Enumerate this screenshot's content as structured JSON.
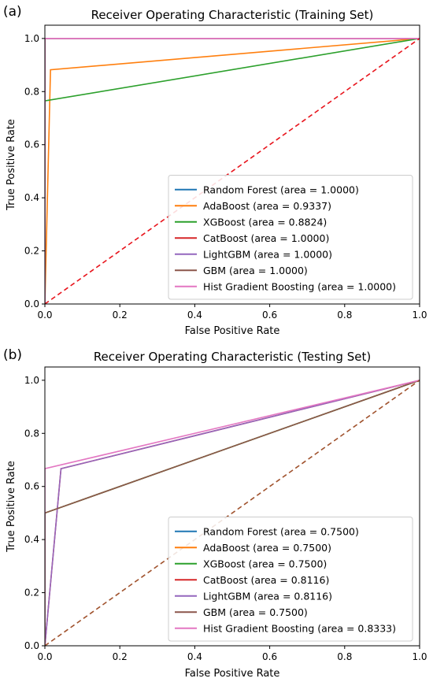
{
  "chart_data": [
    {
      "panel_label": "(a)",
      "type": "line",
      "title": "Receiver Operating Characteristic (Training Set)",
      "xlabel": "False Positive Rate",
      "ylabel": "True Positive Rate",
      "xlim": [
        0,
        1
      ],
      "ylim": [
        0,
        1.05
      ],
      "xticks": [
        "0.0",
        "0.2",
        "0.4",
        "0.6",
        "0.8",
        "1.0"
      ],
      "yticks": [
        "0.0",
        "0.2",
        "0.4",
        "0.6",
        "0.8",
        "1.0"
      ],
      "grid": false,
      "legend_position": "lower-right",
      "diagonal": {
        "x": [
          0,
          1
        ],
        "y": [
          0,
          1
        ],
        "color": "#e8141c",
        "style": "dashed"
      },
      "series": [
        {
          "legend": "Random Forest (area = 1.0000)",
          "color": "#1f77b4",
          "x": [
            0,
            0,
            1
          ],
          "y": [
            0,
            1,
            1
          ]
        },
        {
          "legend": "AdaBoost (area = 0.9337)",
          "color": "#ff7f0e",
          "x": [
            0,
            0.015,
            1
          ],
          "y": [
            0,
            0.882,
            1
          ]
        },
        {
          "legend": "XGBoost (area = 0.8824)",
          "color": "#2ca02c",
          "x": [
            0,
            0,
            1
          ],
          "y": [
            0,
            0.765,
            1
          ]
        },
        {
          "legend": "CatBoost (area = 1.0000)",
          "color": "#d62728",
          "x": [
            0,
            0,
            1
          ],
          "y": [
            0,
            1,
            1
          ]
        },
        {
          "legend": "LightGBM (area = 1.0000)",
          "color": "#9467bd",
          "x": [
            0,
            0,
            1
          ],
          "y": [
            0,
            1,
            1
          ]
        },
        {
          "legend": "GBM (area = 1.0000)",
          "color": "#8c564b",
          "x": [
            0,
            0,
            1
          ],
          "y": [
            0,
            1,
            1
          ]
        },
        {
          "legend": "Hist Gradient Boosting (area = 1.0000)",
          "color": "#e377c2",
          "x": [
            0,
            0,
            1
          ],
          "y": [
            0,
            1,
            1
          ]
        }
      ]
    },
    {
      "panel_label": "(b)",
      "type": "line",
      "title": "Receiver Operating Characteristic (Testing Set)",
      "xlabel": "False Positive Rate",
      "ylabel": "True Positive Rate",
      "xlim": [
        0,
        1
      ],
      "ylim": [
        0,
        1.05
      ],
      "xticks": [
        "0.0",
        "0.2",
        "0.4",
        "0.6",
        "0.8",
        "1.0"
      ],
      "yticks": [
        "0.0",
        "0.2",
        "0.4",
        "0.6",
        "0.8",
        "1.0"
      ],
      "grid": false,
      "legend_position": "lower-right",
      "diagonal": {
        "x": [
          0,
          1
        ],
        "y": [
          0,
          1
        ],
        "color": "#a0522d",
        "style": "dashed"
      },
      "series": [
        {
          "legend": "Random Forest (area = 0.7500)",
          "color": "#1f77b4",
          "x": [
            0,
            0,
            1
          ],
          "y": [
            0,
            0.5,
            1
          ]
        },
        {
          "legend": "AdaBoost (area = 0.7500)",
          "color": "#ff7f0e",
          "x": [
            0,
            0,
            1
          ],
          "y": [
            0,
            0.5,
            1
          ]
        },
        {
          "legend": "XGBoost (area = 0.7500)",
          "color": "#2ca02c",
          "x": [
            0,
            0,
            1
          ],
          "y": [
            0,
            0.5,
            1
          ]
        },
        {
          "legend": "CatBoost (area = 0.8116)",
          "color": "#d62728",
          "x": [
            0,
            0.043,
            1
          ],
          "y": [
            0,
            0.667,
            1
          ]
        },
        {
          "legend": "LightGBM (area = 0.8116)",
          "color": "#9467bd",
          "x": [
            0,
            0.043,
            1
          ],
          "y": [
            0,
            0.667,
            1
          ]
        },
        {
          "legend": "GBM (area = 0.7500)",
          "color": "#8c564b",
          "x": [
            0,
            0,
            1
          ],
          "y": [
            0,
            0.5,
            1
          ]
        },
        {
          "legend": "Hist Gradient Boosting (area = 0.8333)",
          "color": "#e377c2",
          "x": [
            0,
            0,
            1
          ],
          "y": [
            0,
            0.667,
            1
          ]
        }
      ]
    }
  ]
}
